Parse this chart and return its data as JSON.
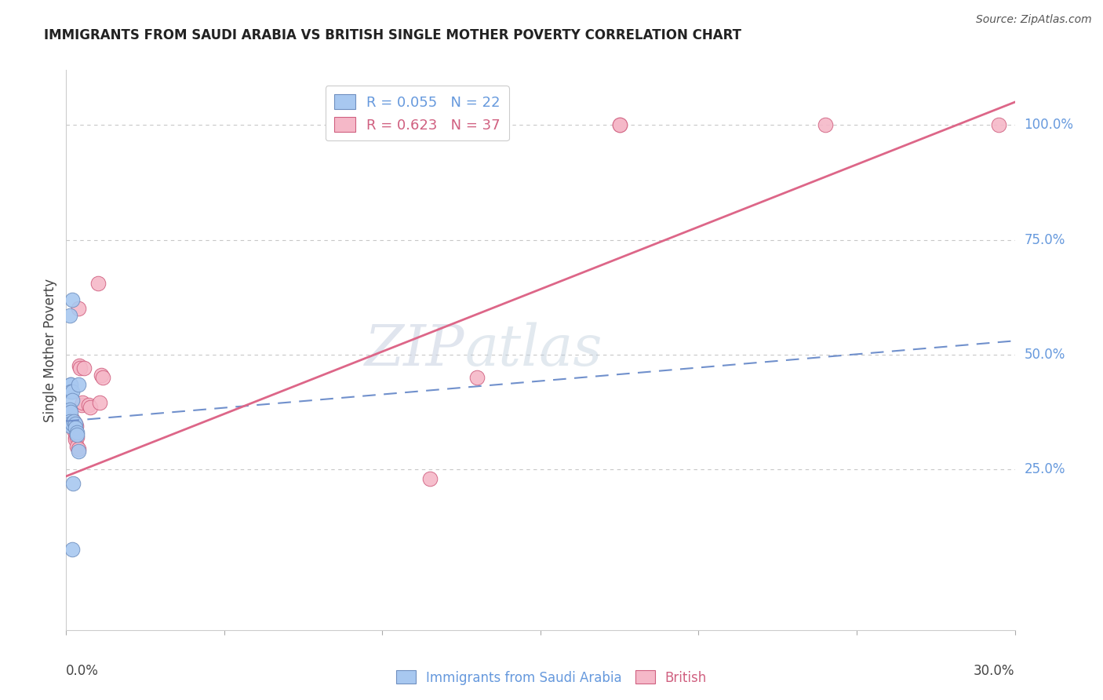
{
  "title": "IMMIGRANTS FROM SAUDI ARABIA VS BRITISH SINGLE MOTHER POVERTY CORRELATION CHART",
  "source": "Source: ZipAtlas.com",
  "ylabel": "Single Mother Poverty",
  "legend_blue_label": "R = 0.055   N = 22",
  "legend_pink_label": "R = 0.623   N = 37",
  "legend_blue_series": "Immigrants from Saudi Arabia",
  "legend_pink_series": "British",
  "xlim": [
    0.0,
    0.3
  ],
  "ylim": [
    -0.1,
    1.12
  ],
  "yticks": [
    0.0,
    0.25,
    0.5,
    0.75,
    1.0
  ],
  "ytick_labels": [
    "",
    "25.0%",
    "50.0%",
    "75.0%",
    "100.0%"
  ],
  "blue_points": [
    [
      0.0012,
      0.585
    ],
    [
      0.002,
      0.62
    ],
    [
      0.0013,
      0.435
    ],
    [
      0.0015,
      0.435
    ],
    [
      0.0015,
      0.42
    ],
    [
      0.0018,
      0.42
    ],
    [
      0.002,
      0.4
    ],
    [
      0.0012,
      0.38
    ],
    [
      0.0015,
      0.375
    ],
    [
      0.0012,
      0.355
    ],
    [
      0.0012,
      0.35
    ],
    [
      0.0015,
      0.345
    ],
    [
      0.002,
      0.35
    ],
    [
      0.0025,
      0.355
    ],
    [
      0.003,
      0.35
    ],
    [
      0.003,
      0.34
    ],
    [
      0.0035,
      0.33
    ],
    [
      0.0035,
      0.325
    ],
    [
      0.0038,
      0.29
    ],
    [
      0.004,
      0.435
    ],
    [
      0.0022,
      0.22
    ],
    [
      0.002,
      0.075
    ]
  ],
  "pink_points": [
    [
      0.0008,
      0.375
    ],
    [
      0.001,
      0.37
    ],
    [
      0.0012,
      0.37
    ],
    [
      0.0012,
      0.36
    ],
    [
      0.0014,
      0.355
    ],
    [
      0.0015,
      0.35
    ],
    [
      0.0016,
      0.348
    ],
    [
      0.0018,
      0.36
    ],
    [
      0.002,
      0.355
    ],
    [
      0.0022,
      0.35
    ],
    [
      0.0025,
      0.34
    ],
    [
      0.0025,
      0.335
    ],
    [
      0.0028,
      0.32
    ],
    [
      0.0028,
      0.315
    ],
    [
      0.003,
      0.35
    ],
    [
      0.0032,
      0.345
    ],
    [
      0.0035,
      0.32
    ],
    [
      0.0035,
      0.3
    ],
    [
      0.0038,
      0.295
    ],
    [
      0.004,
      0.6
    ],
    [
      0.0042,
      0.475
    ],
    [
      0.0045,
      0.47
    ],
    [
      0.0048,
      0.39
    ],
    [
      0.005,
      0.395
    ],
    [
      0.0055,
      0.47
    ],
    [
      0.007,
      0.39
    ],
    [
      0.0075,
      0.385
    ],
    [
      0.01,
      0.655
    ],
    [
      0.0105,
      0.395
    ],
    [
      0.011,
      0.455
    ],
    [
      0.0115,
      0.45
    ],
    [
      0.115,
      0.23
    ],
    [
      0.13,
      0.45
    ],
    [
      0.175,
      1.0
    ],
    [
      0.175,
      1.0
    ],
    [
      0.24,
      1.0
    ],
    [
      0.295,
      1.0
    ]
  ],
  "blue_line_x": [
    0.0,
    0.3
  ],
  "blue_line_y": [
    0.355,
    0.53
  ],
  "pink_line_x": [
    0.0,
    0.3
  ],
  "pink_line_y": [
    0.235,
    1.05
  ],
  "watermark_zip": "ZIP",
  "watermark_atlas": "atlas",
  "background_color": "#ffffff",
  "blue_color": "#a8c8f0",
  "pink_color": "#f5b8c8",
  "blue_edge_color": "#7090c0",
  "pink_edge_color": "#d06080",
  "blue_line_color": "#7090cc",
  "pink_line_color": "#dd6688",
  "grid_color": "#c8c8c8",
  "right_tick_color": "#6699dd",
  "title_color": "#222222",
  "source_color": "#555555"
}
